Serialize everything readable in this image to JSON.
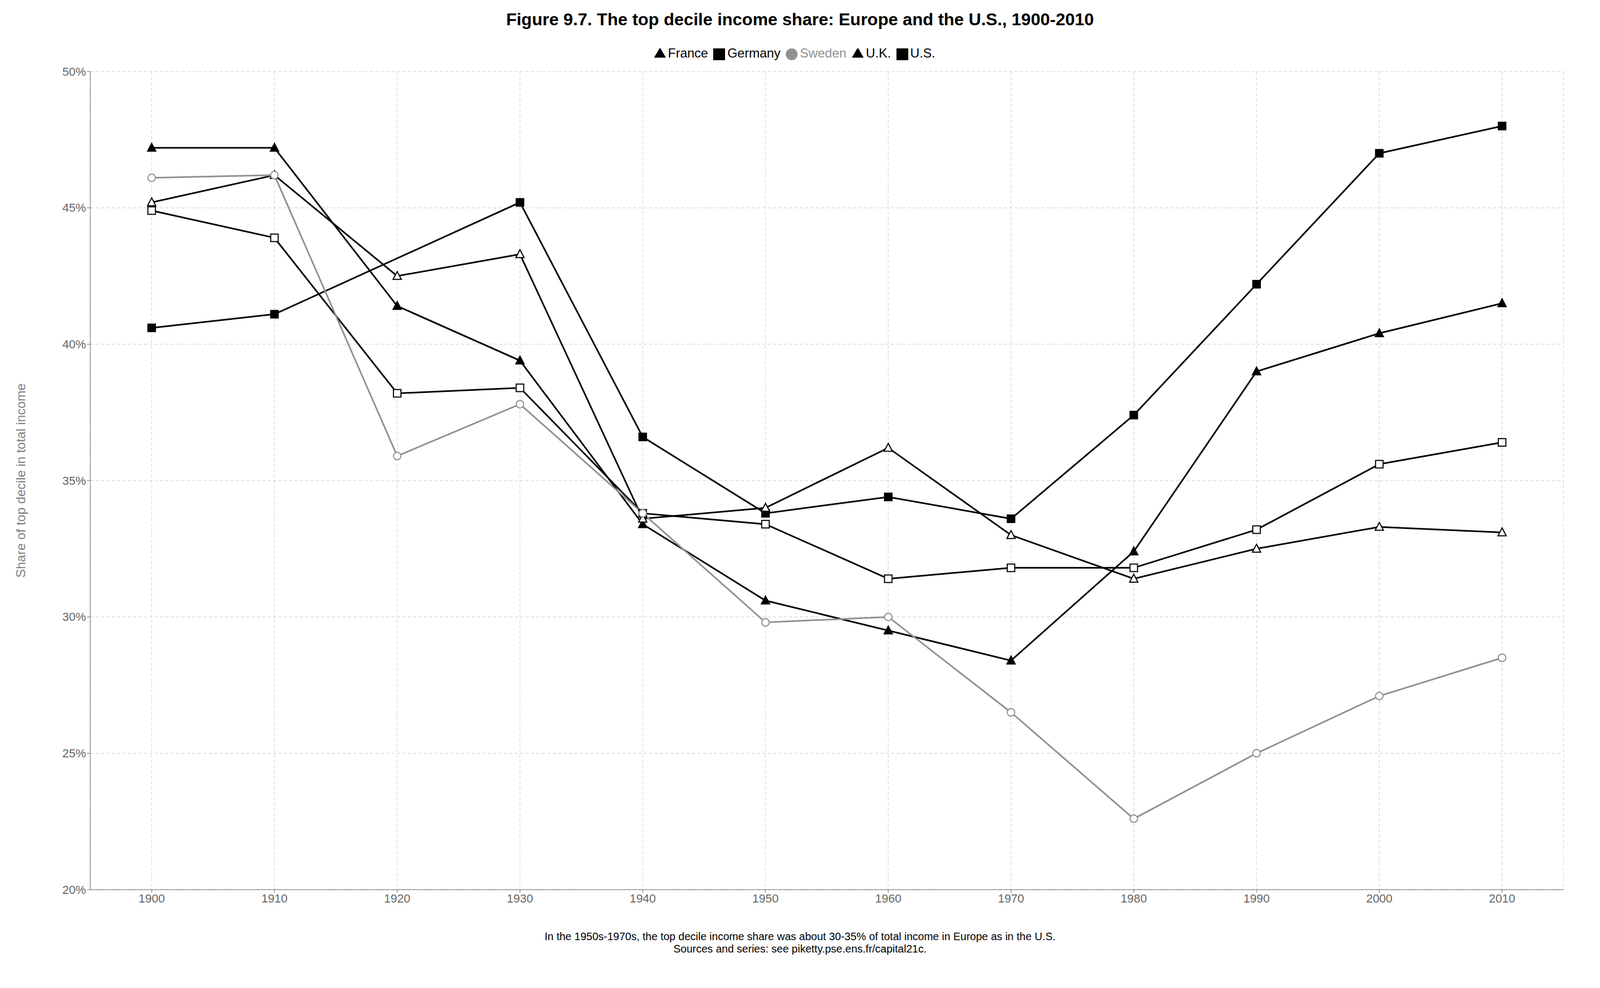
{
  "chart_data": {
    "type": "line",
    "title": "Figure 9.7. The top decile income share: Europe and the U.S., 1900-2010",
    "y_label": "Share of top decile in total income",
    "annotations": [
      "In the 1950s-1970s, the top decile income share was about 30-35% of total income in Europe as in the U.S.",
      "Sources and series: see piketty.pse.ens.fr/capital21c."
    ],
    "x": [
      1900,
      1910,
      1920,
      1930,
      1940,
      1950,
      1960,
      1970,
      1980,
      1990,
      2000,
      2010
    ],
    "series": [
      {
        "name": "U.S.",
        "color": "#000000",
        "marker": "square",
        "values": [
          0.406,
          0.411,
          null,
          0.452,
          0.366,
          0.338,
          0.344,
          0.336,
          0.374,
          0.422,
          0.47,
          0.48
        ]
      },
      {
        "name": "U.K.",
        "color": "#000000",
        "marker": "triangle",
        "values": [
          0.472,
          0.472,
          0.414,
          0.394,
          0.334,
          0.306,
          0.295,
          0.284,
          0.324,
          0.39,
          0.404,
          0.415
        ]
      },
      {
        "name": "Germany",
        "color": "#000000",
        "marker": "square-open",
        "values": [
          0.449,
          0.439,
          0.382,
          0.384,
          0.338,
          0.334,
          0.314,
          0.318,
          0.318,
          0.332,
          0.356,
          0.364
        ]
      },
      {
        "name": "France",
        "color": "#000000",
        "marker": "triangle-open",
        "values": [
          0.452,
          0.462,
          0.425,
          0.433,
          0.336,
          0.34,
          0.362,
          0.33,
          0.314,
          0.325,
          0.333,
          0.331
        ]
      },
      {
        "name": "Sweden",
        "color": "#909090",
        "marker": "circle-open",
        "values": [
          0.461,
          0.462,
          0.359,
          0.378,
          0.338,
          0.298,
          0.3,
          0.265,
          0.226,
          0.25,
          0.271,
          0.285
        ]
      }
    ],
    "xlim": [
      1895,
      2015
    ],
    "xticks": [
      1900,
      1910,
      1920,
      1930,
      1940,
      1950,
      1960,
      1970,
      1980,
      1990,
      2000,
      2010
    ],
    "ylim": [
      0.2,
      0.5
    ],
    "yticks": [
      {
        "value": 0.2,
        "label": "20%"
      },
      {
        "value": 0.25,
        "label": "25%"
      },
      {
        "value": 0.3,
        "label": "30%"
      },
      {
        "value": 0.35,
        "label": "35%"
      },
      {
        "value": 0.4,
        "label": "40%"
      },
      {
        "value": 0.45,
        "label": "45%"
      },
      {
        "value": 0.5,
        "label": "50%"
      }
    ],
    "grid": true,
    "legend": "top"
  }
}
